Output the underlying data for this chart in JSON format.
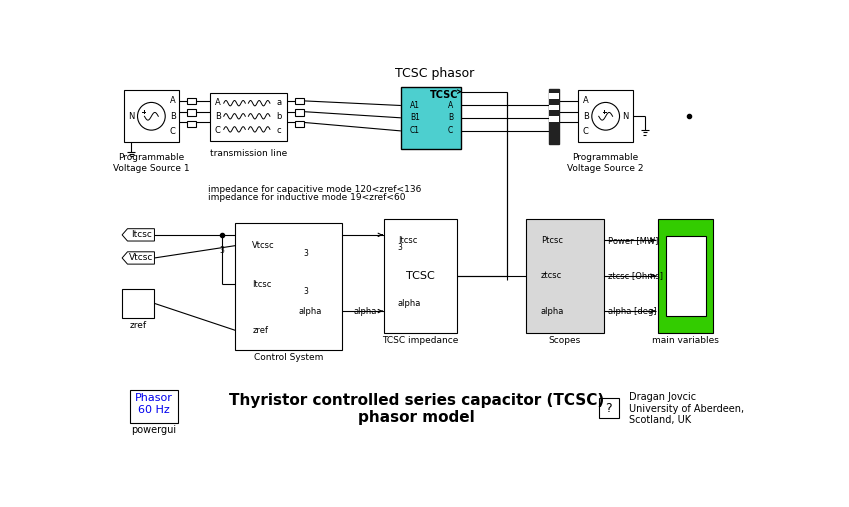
{
  "title": "TCSC phasor",
  "bg_color": "#ffffff",
  "bottom_title": "Thyristor controlled series capacitor (TCSC)\nphasor model",
  "author_text": "Dragan Jovcic\nUniversity of Aberdeen,\nScotland, UK",
  "powergui_text": "Phasor\n60 Hz",
  "powergui_label": "powergui",
  "question_mark": "?",
  "note_line1": "impedance for capacitive mode 120<zref<136",
  "note_line2": "impedance for inductive mode 19<zref<60",
  "tcsc_color": "#4DCFCF",
  "green_color": "#33CC00",
  "light_gray": "#D8D8D8",
  "blue_text": "#0000EE"
}
